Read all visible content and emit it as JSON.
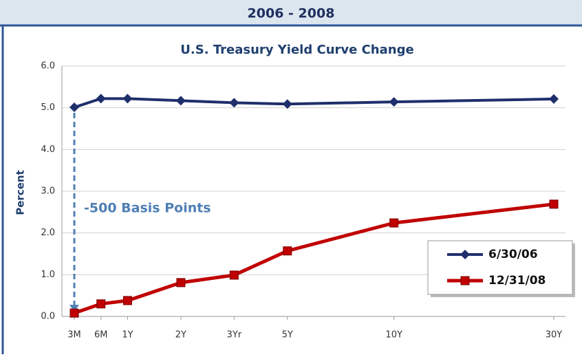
{
  "header": {
    "title": "2006 - 2008"
  },
  "chart_data": {
    "type": "line",
    "title": "U.S. Treasury Yield Curve Change",
    "y_label": "Percent",
    "annotation": "-500 Basis Points",
    "categories": [
      "3M",
      "6M",
      "1Y",
      "2Y",
      "3Yr",
      "5Y",
      "10Y",
      "30Y"
    ],
    "series": [
      {
        "name": "6/30/06",
        "color": "#1f2f6b",
        "marker": "diamond",
        "values": [
          5.01,
          5.22,
          5.22,
          5.17,
          5.12,
          5.09,
          5.14,
          5.21
        ]
      },
      {
        "name": "12/31/08",
        "color": "#c00000",
        "marker": "square",
        "values": [
          0.08,
          0.3,
          0.38,
          0.81,
          0.99,
          1.57,
          2.24,
          2.69
        ]
      }
    ],
    "ylim": [
      0,
      6
    ],
    "yticks": [
      {
        "value": 0,
        "label": "0.0"
      },
      {
        "value": 1,
        "label": "1.0"
      },
      {
        "value": 2,
        "label": "2.0"
      },
      {
        "value": 3,
        "label": "3.0"
      },
      {
        "value": 4,
        "label": "4.0"
      },
      {
        "value": 5,
        "label": "5.0"
      },
      {
        "value": 6,
        "label": "6.0"
      }
    ],
    "grid": true,
    "legend": "bottom-right"
  }
}
